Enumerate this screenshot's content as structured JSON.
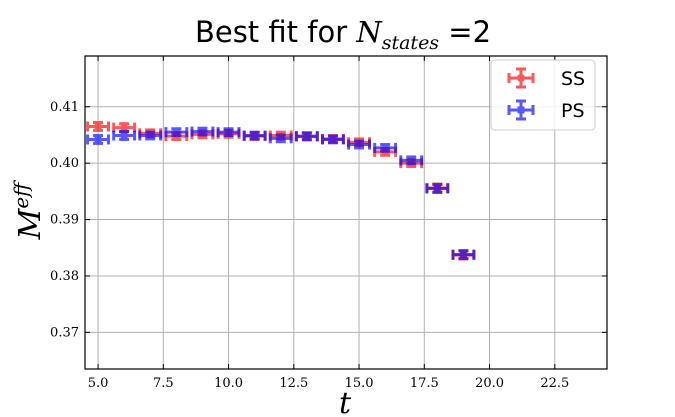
{
  "chart_data": {
    "type": "scatter",
    "title": {
      "prefix": "Best fit for ",
      "math_main": "N",
      "math_sub": "states",
      "suffix": " =2"
    },
    "xlabel": "t",
    "ylabel": {
      "main": "M",
      "sup": "eff"
    },
    "xlim": [
      4.5,
      24.5
    ],
    "ylim": [
      0.3635,
      0.419
    ],
    "xticks": [
      "5.0",
      "7.5",
      "10.0",
      "12.5",
      "15.0",
      "17.5",
      "20.0",
      "22.5"
    ],
    "yticks": [
      "0.37",
      "0.38",
      "0.39",
      "0.40",
      "0.41"
    ],
    "grid": true,
    "legend_position": "top-right",
    "series": [
      {
        "name": "SS",
        "color": "#ff0000",
        "marker": "circle",
        "x": [
          5,
          6,
          7,
          8,
          9,
          10,
          11,
          12,
          13,
          14,
          15,
          16,
          17,
          18,
          19
        ],
        "y": [
          0.4065,
          0.4063,
          0.4053,
          0.4048,
          0.4051,
          0.4052,
          0.4048,
          0.4049,
          0.4047,
          0.4043,
          0.4037,
          0.402,
          0.4,
          0.3956,
          0.3837
        ],
        "yerr": [
          0.0007,
          0.0007,
          0.0006,
          0.0006,
          0.0006,
          0.0006,
          0.0006,
          0.0006,
          0.0006,
          0.0006,
          0.0006,
          0.0006,
          0.0006,
          0.0007,
          0.0007
        ],
        "xerr": 0.4
      },
      {
        "name": "PS",
        "color": "#0000ff",
        "marker": "square",
        "x": [
          5,
          6,
          7,
          8,
          9,
          10,
          11,
          12,
          13,
          14,
          15,
          16,
          17,
          18,
          19
        ],
        "y": [
          0.4042,
          0.4049,
          0.4049,
          0.4055,
          0.4056,
          0.4055,
          0.4049,
          0.4044,
          0.4048,
          0.4042,
          0.4033,
          0.4027,
          0.4005,
          0.3955,
          0.3838
        ],
        "yerr": [
          0.0007,
          0.0007,
          0.0006,
          0.0006,
          0.0006,
          0.0006,
          0.0006,
          0.0006,
          0.0006,
          0.0006,
          0.0006,
          0.0006,
          0.0006,
          0.0007,
          0.0007
        ],
        "xerr": 0.4
      }
    ]
  }
}
